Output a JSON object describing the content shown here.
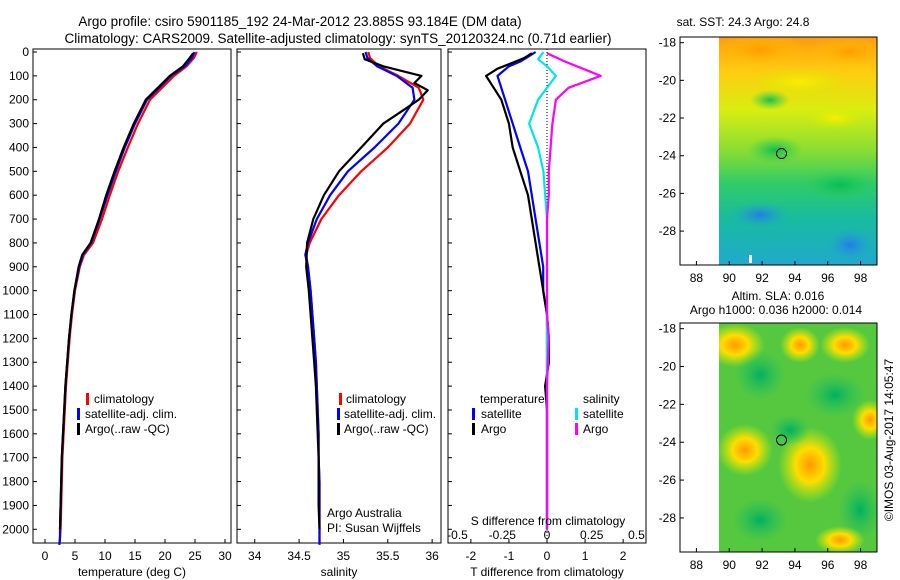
{
  "header": {
    "line1": "Argo profile: csiro 5901185_192 24-Mar-2012 23.885S 93.184E (DM data)",
    "line2": "Climatology: CARS2009. Satellite-adjusted climatology: synTS_20120324.nc (0.71d earlier)"
  },
  "credit": "©IMOS 03-Aug-2017 14:05:47",
  "colors": {
    "climatology": "#ff0000",
    "satellite": "#0000ff",
    "argo": "#000000",
    "sal_satellite": "#00e5e5",
    "sal_argo": "#ff00ff"
  },
  "chart_data": [
    {
      "id": "temperature",
      "type": "line",
      "xlabel": "temperature (deg C)",
      "ylabel": "",
      "xlim": [
        -2,
        31
      ],
      "ylim": [
        2070,
        0
      ],
      "xticks": [
        0,
        5,
        10,
        15,
        20,
        25,
        30
      ],
      "xtick_labels": [
        "0",
        "5",
        "10",
        "15",
        "20",
        "25",
        "30"
      ],
      "yticks": [
        0,
        100,
        200,
        300,
        400,
        500,
        600,
        700,
        800,
        900,
        1000,
        1100,
        1200,
        1300,
        1400,
        1500,
        1600,
        1700,
        1800,
        1900,
        2000
      ],
      "ytick_labels": [
        "0",
        "100",
        "200",
        "300",
        "400",
        "500",
        "600",
        "700",
        "800",
        "900",
        "1000",
        "1100",
        "1200",
        "1300",
        "1400",
        "1500",
        "1600",
        "1700",
        "1800",
        "1900",
        "2000"
      ],
      "legend": [
        "climatology",
        "satellite-adj. clim.",
        "Argo(..raw -QC)"
      ],
      "legend_position": "lower-center",
      "series": [
        {
          "name": "climatology",
          "color": "#ff0000",
          "x": [
            25.3,
            24.8,
            23.6,
            21.5,
            19.5,
            17.5,
            15.5,
            13.8,
            12.2,
            10.8,
            9.5,
            8.0,
            6.5,
            5.8,
            5.0,
            4.5,
            4.1,
            3.8,
            3.5,
            3.3,
            3.1,
            2.9,
            2.8,
            2.7,
            2.6,
            2.5,
            2.4
          ],
          "y": [
            0,
            25,
            60,
            100,
            150,
            200,
            300,
            400,
            500,
            600,
            700,
            800,
            850,
            900,
            1000,
            1100,
            1200,
            1300,
            1400,
            1500,
            1600,
            1700,
            1800,
            1900,
            2000,
            2035,
            2065
          ]
        },
        {
          "name": "satellite-adj. clim.",
          "color": "#0000ff",
          "x": [
            24.9,
            24.5,
            23.3,
            21.0,
            19.0,
            17.0,
            15.0,
            13.3,
            11.8,
            10.4,
            9.1,
            7.7,
            6.3,
            5.7,
            4.9,
            4.4,
            4.0,
            3.7,
            3.4,
            3.2,
            3.0,
            2.8,
            2.7,
            2.6,
            2.5,
            2.5,
            2.4
          ],
          "y": [
            0,
            25,
            60,
            100,
            150,
            200,
            300,
            400,
            500,
            600,
            700,
            800,
            850,
            900,
            1000,
            1100,
            1200,
            1300,
            1400,
            1500,
            1600,
            1700,
            1800,
            1900,
            2000,
            2035,
            2065
          ]
        },
        {
          "name": "Argo(..raw -QC)",
          "color": "#000000",
          "x": [
            24.7,
            24.1,
            23.0,
            20.8,
            18.8,
            16.8,
            14.8,
            13.1,
            11.6,
            10.2,
            9.0,
            7.6,
            6.2,
            5.6,
            4.9,
            4.4,
            4.0,
            3.7,
            3.4,
            3.2,
            3.0,
            2.8,
            2.7,
            2.6,
            2.5
          ],
          "y": [
            5,
            25,
            60,
            100,
            150,
            200,
            300,
            400,
            500,
            600,
            700,
            800,
            850,
            900,
            1000,
            1100,
            1200,
            1300,
            1400,
            1500,
            1600,
            1700,
            1800,
            1900,
            2000
          ]
        }
      ],
      "annotations": []
    },
    {
      "id": "salinity",
      "type": "line",
      "xlabel": "salinity",
      "ylabel": "",
      "xlim": [
        33.8,
        36.1
      ],
      "ylim": [
        2070,
        0
      ],
      "xticks": [
        34,
        34.5,
        35,
        35.5,
        36
      ],
      "xtick_labels": [
        "34",
        "34.5",
        "35",
        "35.5",
        "36"
      ],
      "legend": [
        "climatology",
        "satellite-adj. clim.",
        "Argo(..raw -QC)"
      ],
      "legend_position": "lower-center",
      "series": [
        {
          "name": "climatology",
          "color": "#ff0000",
          "x": [
            35.28,
            35.3,
            35.4,
            35.62,
            35.85,
            35.9,
            35.75,
            35.5,
            35.2,
            34.95,
            34.75,
            34.62,
            34.58,
            34.6,
            34.63,
            34.65,
            34.67,
            34.69,
            34.7,
            34.71,
            34.72,
            34.72,
            34.73,
            34.73,
            34.73,
            34.73
          ],
          "y": [
            0,
            25,
            60,
            100,
            150,
            200,
            300,
            400,
            500,
            600,
            700,
            800,
            850,
            900,
            1000,
            1100,
            1200,
            1300,
            1400,
            1500,
            1600,
            1700,
            1800,
            1900,
            2000,
            2065
          ]
        },
        {
          "name": "satellite-adj. clim.",
          "color": "#0000ff",
          "x": [
            35.25,
            35.27,
            35.38,
            35.6,
            35.78,
            35.8,
            35.62,
            35.35,
            35.05,
            34.85,
            34.7,
            34.6,
            34.57,
            34.6,
            34.63,
            34.65,
            34.67,
            34.69,
            34.7,
            34.71,
            34.72,
            34.72,
            34.73,
            34.73,
            34.73,
            34.73
          ],
          "y": [
            0,
            25,
            60,
            100,
            150,
            200,
            300,
            400,
            500,
            600,
            700,
            800,
            850,
            900,
            1000,
            1100,
            1200,
            1300,
            1400,
            1500,
            1600,
            1700,
            1800,
            1900,
            2000,
            2065
          ]
        },
        {
          "name": "Argo(..raw -QC)",
          "color": "#000000",
          "x": [
            35.22,
            35.24,
            35.45,
            35.88,
            35.8,
            35.95,
            35.85,
            35.65,
            35.45,
            35.2,
            34.95,
            34.78,
            34.66,
            34.59,
            34.58,
            34.61,
            34.63,
            34.65,
            34.67,
            34.69,
            34.7,
            34.71,
            34.72,
            34.72,
            34.72,
            34.73
          ],
          "y": [
            5,
            30,
            60,
            100,
            130,
            160,
            200,
            250,
            300,
            400,
            500,
            600,
            700,
            800,
            900,
            1000,
            1100,
            1200,
            1300,
            1400,
            1500,
            1600,
            1700,
            1800,
            1900,
            2000
          ]
        }
      ],
      "annotations": [
        "Argo Australia",
        "PI: Susan Wijffels"
      ]
    },
    {
      "id": "difference",
      "type": "line",
      "xlabel": "T difference from climatology",
      "xlabel_top": "S difference from climatology",
      "xlim": [
        -2.6,
        2.6
      ],
      "ylim": [
        2070,
        0
      ],
      "xticks": [
        -2,
        -1,
        0,
        1,
        2
      ],
      "xtick_labels": [
        "-2",
        "-1",
        "0",
        "1",
        "2"
      ],
      "xticks_s": [
        -0.5,
        -0.25,
        0,
        0.25,
        0.5
      ],
      "xtick_labels_s": [
        "-0.5",
        "-0.25",
        "0",
        "0.25",
        "0.5"
      ],
      "zero_line": true,
      "legend_groups": [
        {
          "title": "temperature",
          "items": [
            "satellite",
            "Argo"
          ]
        },
        {
          "title": "salinity",
          "items": [
            "satellite",
            "Argo"
          ]
        }
      ],
      "series": [
        {
          "name": "temperature satellite",
          "color": "#0000ff",
          "x": [
            -0.3,
            -0.5,
            -0.7,
            -1.0,
            -1.3,
            -1.1,
            -0.9,
            -0.7,
            -0.5,
            -0.4,
            -0.3,
            -0.2,
            -0.1,
            -0.1,
            0,
            0,
            0,
            0,
            0,
            0,
            0,
            0,
            0
          ],
          "y": [
            0,
            20,
            40,
            60,
            100,
            200,
            300,
            400,
            500,
            600,
            700,
            800,
            900,
            1000,
            1100,
            1200,
            1300,
            1400,
            1500,
            1600,
            1800,
            1950,
            2000
          ]
        },
        {
          "name": "temperature Argo",
          "color": "#000000",
          "x": [
            -0.4,
            -0.6,
            -0.9,
            -1.3,
            -1.6,
            -1.2,
            -1.0,
            -0.9,
            -0.7,
            -0.5,
            -0.4,
            -0.3,
            -0.2,
            -0.1,
            0,
            0.05,
            0.05,
            -0.05,
            0,
            0,
            0,
            0,
            0
          ],
          "y": [
            5,
            25,
            45,
            70,
            100,
            200,
            300,
            400,
            500,
            600,
            700,
            800,
            900,
            1000,
            1100,
            1200,
            1300,
            1400,
            1500,
            1600,
            1800,
            1950,
            2000
          ]
        },
        {
          "name": "salinity satellite",
          "color": "#00e5e5",
          "x": [
            -0.02,
            -0.05,
            0.0,
            0.05,
            0.0,
            -0.05,
            -0.1,
            -0.05,
            -0.02,
            -0.01,
            0,
            0,
            0,
            0,
            0,
            0,
            0,
            0,
            0,
            0,
            0,
            0
          ],
          "y": [
            0,
            30,
            60,
            100,
            150,
            200,
            300,
            400,
            500,
            600,
            700,
            800,
            900,
            1000,
            1100,
            1200,
            1300,
            1400,
            1500,
            1600,
            1800,
            2000
          ]
        },
        {
          "name": "salinity Argo",
          "color": "#ff00ff",
          "x": [
            0.0,
            0.1,
            0.2,
            0.3,
            0.12,
            0.05,
            0.03,
            0.02,
            0.01,
            0.01,
            0.0,
            0.0,
            0.0,
            0.0,
            0.0,
            0.01,
            0.0,
            0.0,
            0.0,
            0.0
          ],
          "y": [
            5,
            40,
            70,
            100,
            150,
            200,
            300,
            400,
            500,
            600,
            700,
            800,
            900,
            1000,
            1100,
            1200,
            1400,
            1600,
            1800,
            2000
          ]
        }
      ]
    },
    {
      "id": "sst-map",
      "type": "heatmap",
      "title": "sat. SST: 24.3  Argo: 24.8",
      "xlim": [
        87,
        99
      ],
      "ylim": [
        -29.8,
        -17.7
      ],
      "xticks": [
        88,
        90,
        92,
        94,
        96,
        98
      ],
      "xtick_labels": [
        "88",
        "90",
        "92",
        "94",
        "96",
        "98"
      ],
      "yticks": [
        -18,
        -20,
        -22,
        -24,
        -26,
        -28
      ],
      "ytick_labels": [
        "-18",
        "-20",
        "-22",
        "-24",
        "-26",
        "-28"
      ],
      "data_extent": [
        90,
        99
      ],
      "marker": {
        "lon": 93.184,
        "lat": -23.885
      }
    },
    {
      "id": "sla-map",
      "type": "heatmap",
      "title": "Altim. SLA: 0.016",
      "subtitle": "Argo h1000: 0.036 h2000: 0.014",
      "xlim": [
        87,
        99
      ],
      "ylim": [
        -29.8,
        -17.7
      ],
      "xticks": [
        88,
        90,
        92,
        94,
        96,
        98
      ],
      "xtick_labels": [
        "88",
        "90",
        "92",
        "94",
        "96",
        "98"
      ],
      "yticks": [
        -18,
        -20,
        -22,
        -24,
        -26,
        -28
      ],
      "ytick_labels": [
        "-18",
        "-20",
        "-22",
        "-24",
        "-26",
        "-28"
      ],
      "data_extent": [
        90,
        99
      ],
      "marker": {
        "lon": 93.184,
        "lat": -23.885
      }
    }
  ]
}
